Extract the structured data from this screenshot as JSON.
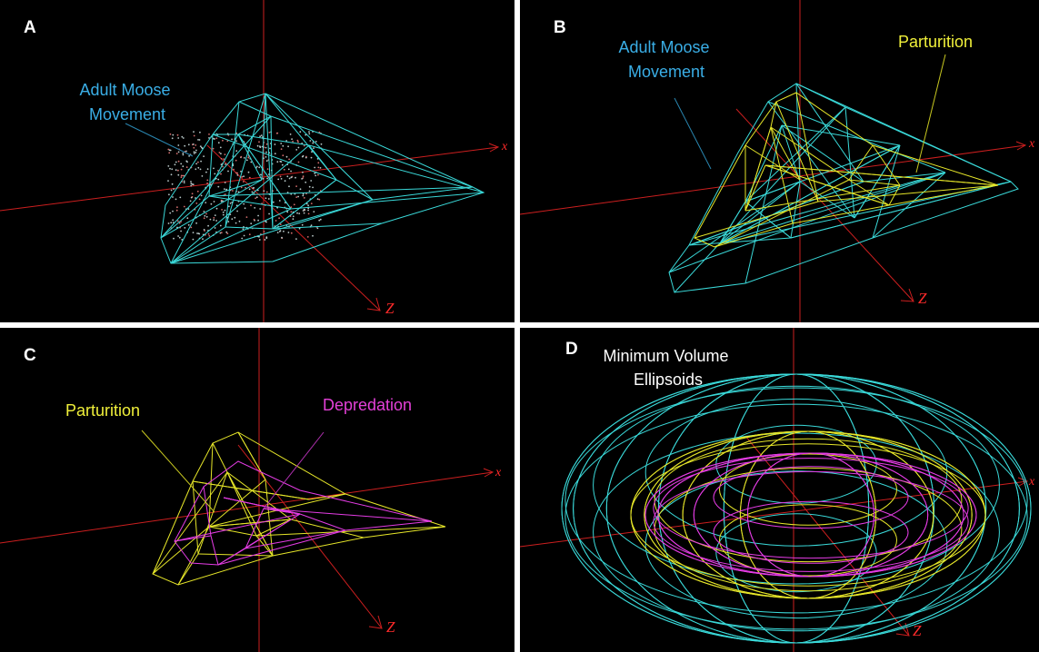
{
  "figure": {
    "panels": [
      {
        "id": "A",
        "letter": "A",
        "labels": {
          "movement": [
            "Adult Moose",
            "Movement"
          ]
        }
      },
      {
        "id": "B",
        "letter": "B",
        "labels": {
          "movement": [
            "Adult Moose",
            "Movement"
          ],
          "parturition": "Parturition"
        }
      },
      {
        "id": "C",
        "letter": "C",
        "labels": {
          "parturition": "Parturition",
          "depredation": "Depredation"
        }
      },
      {
        "id": "D",
        "letter": "D",
        "labels": {
          "title": [
            "Minimum Volume",
            "Ellipsoids"
          ]
        }
      }
    ],
    "axis_labels": {
      "x": "x",
      "z": "Z"
    },
    "colors": {
      "background": "#000000",
      "axes": "#cc1f1f",
      "movement": "#3ad9d9",
      "parturition": "#e6e629",
      "depredation": "#e43ce4",
      "points": "#b9c9c9",
      "label_movement": "#3aaee6",
      "label_parturition": "#f0f03a",
      "label_depredation": "#e440d8",
      "label_title": "#ffffff"
    }
  }
}
